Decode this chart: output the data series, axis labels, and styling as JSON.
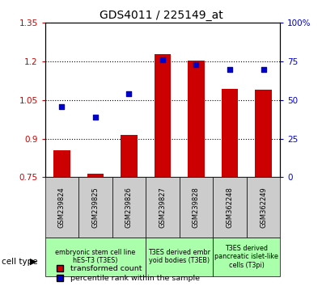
{
  "title": "GDS4011 / 225149_at",
  "samples": [
    "GSM239824",
    "GSM239825",
    "GSM239826",
    "GSM239827",
    "GSM239828",
    "GSM362248",
    "GSM362249"
  ],
  "bar_values": [
    0.855,
    0.765,
    0.915,
    1.23,
    1.205,
    1.095,
    1.09
  ],
  "dot_values": [
    46,
    39,
    54,
    76,
    73,
    70,
    70
  ],
  "bar_color": "#cc0000",
  "dot_color": "#0000cc",
  "ylim_left": [
    0.75,
    1.35
  ],
  "ylim_right": [
    0,
    100
  ],
  "yticks_left": [
    0.75,
    0.9,
    1.05,
    1.2,
    1.35
  ],
  "ytick_labels_left": [
    "0.75",
    "0.9",
    "1.05",
    "1.2",
    "1.35"
  ],
  "ytick_labels_right": [
    "0",
    "25",
    "50",
    "75",
    "100%"
  ],
  "yticks_right": [
    0,
    25,
    50,
    75,
    100
  ],
  "hgrid_lines": [
    0.9,
    1.05,
    1.2
  ],
  "groups": [
    {
      "label": "embryonic stem cell line\nhES-T3 (T3ES)",
      "start": 0,
      "end": 3,
      "color": "#aaffaa"
    },
    {
      "label": "T3ES derived embr\nyoid bodies (T3EB)",
      "start": 3,
      "end": 5,
      "color": "#aaffaa"
    },
    {
      "label": "T3ES derived\npancreatic islet-like\ncells (T3pi)",
      "start": 5,
      "end": 7,
      "color": "#aaffaa"
    }
  ],
  "legend_red_label": "transformed count",
  "legend_blue_label": "percentile rank within the sample",
  "cell_type_label": "cell type",
  "bar_bottom": 0.75,
  "bar_width": 0.5,
  "sample_box_color": "#cccccc",
  "fig_bg": "#ffffff",
  "right_axis_label_suffix": "%"
}
